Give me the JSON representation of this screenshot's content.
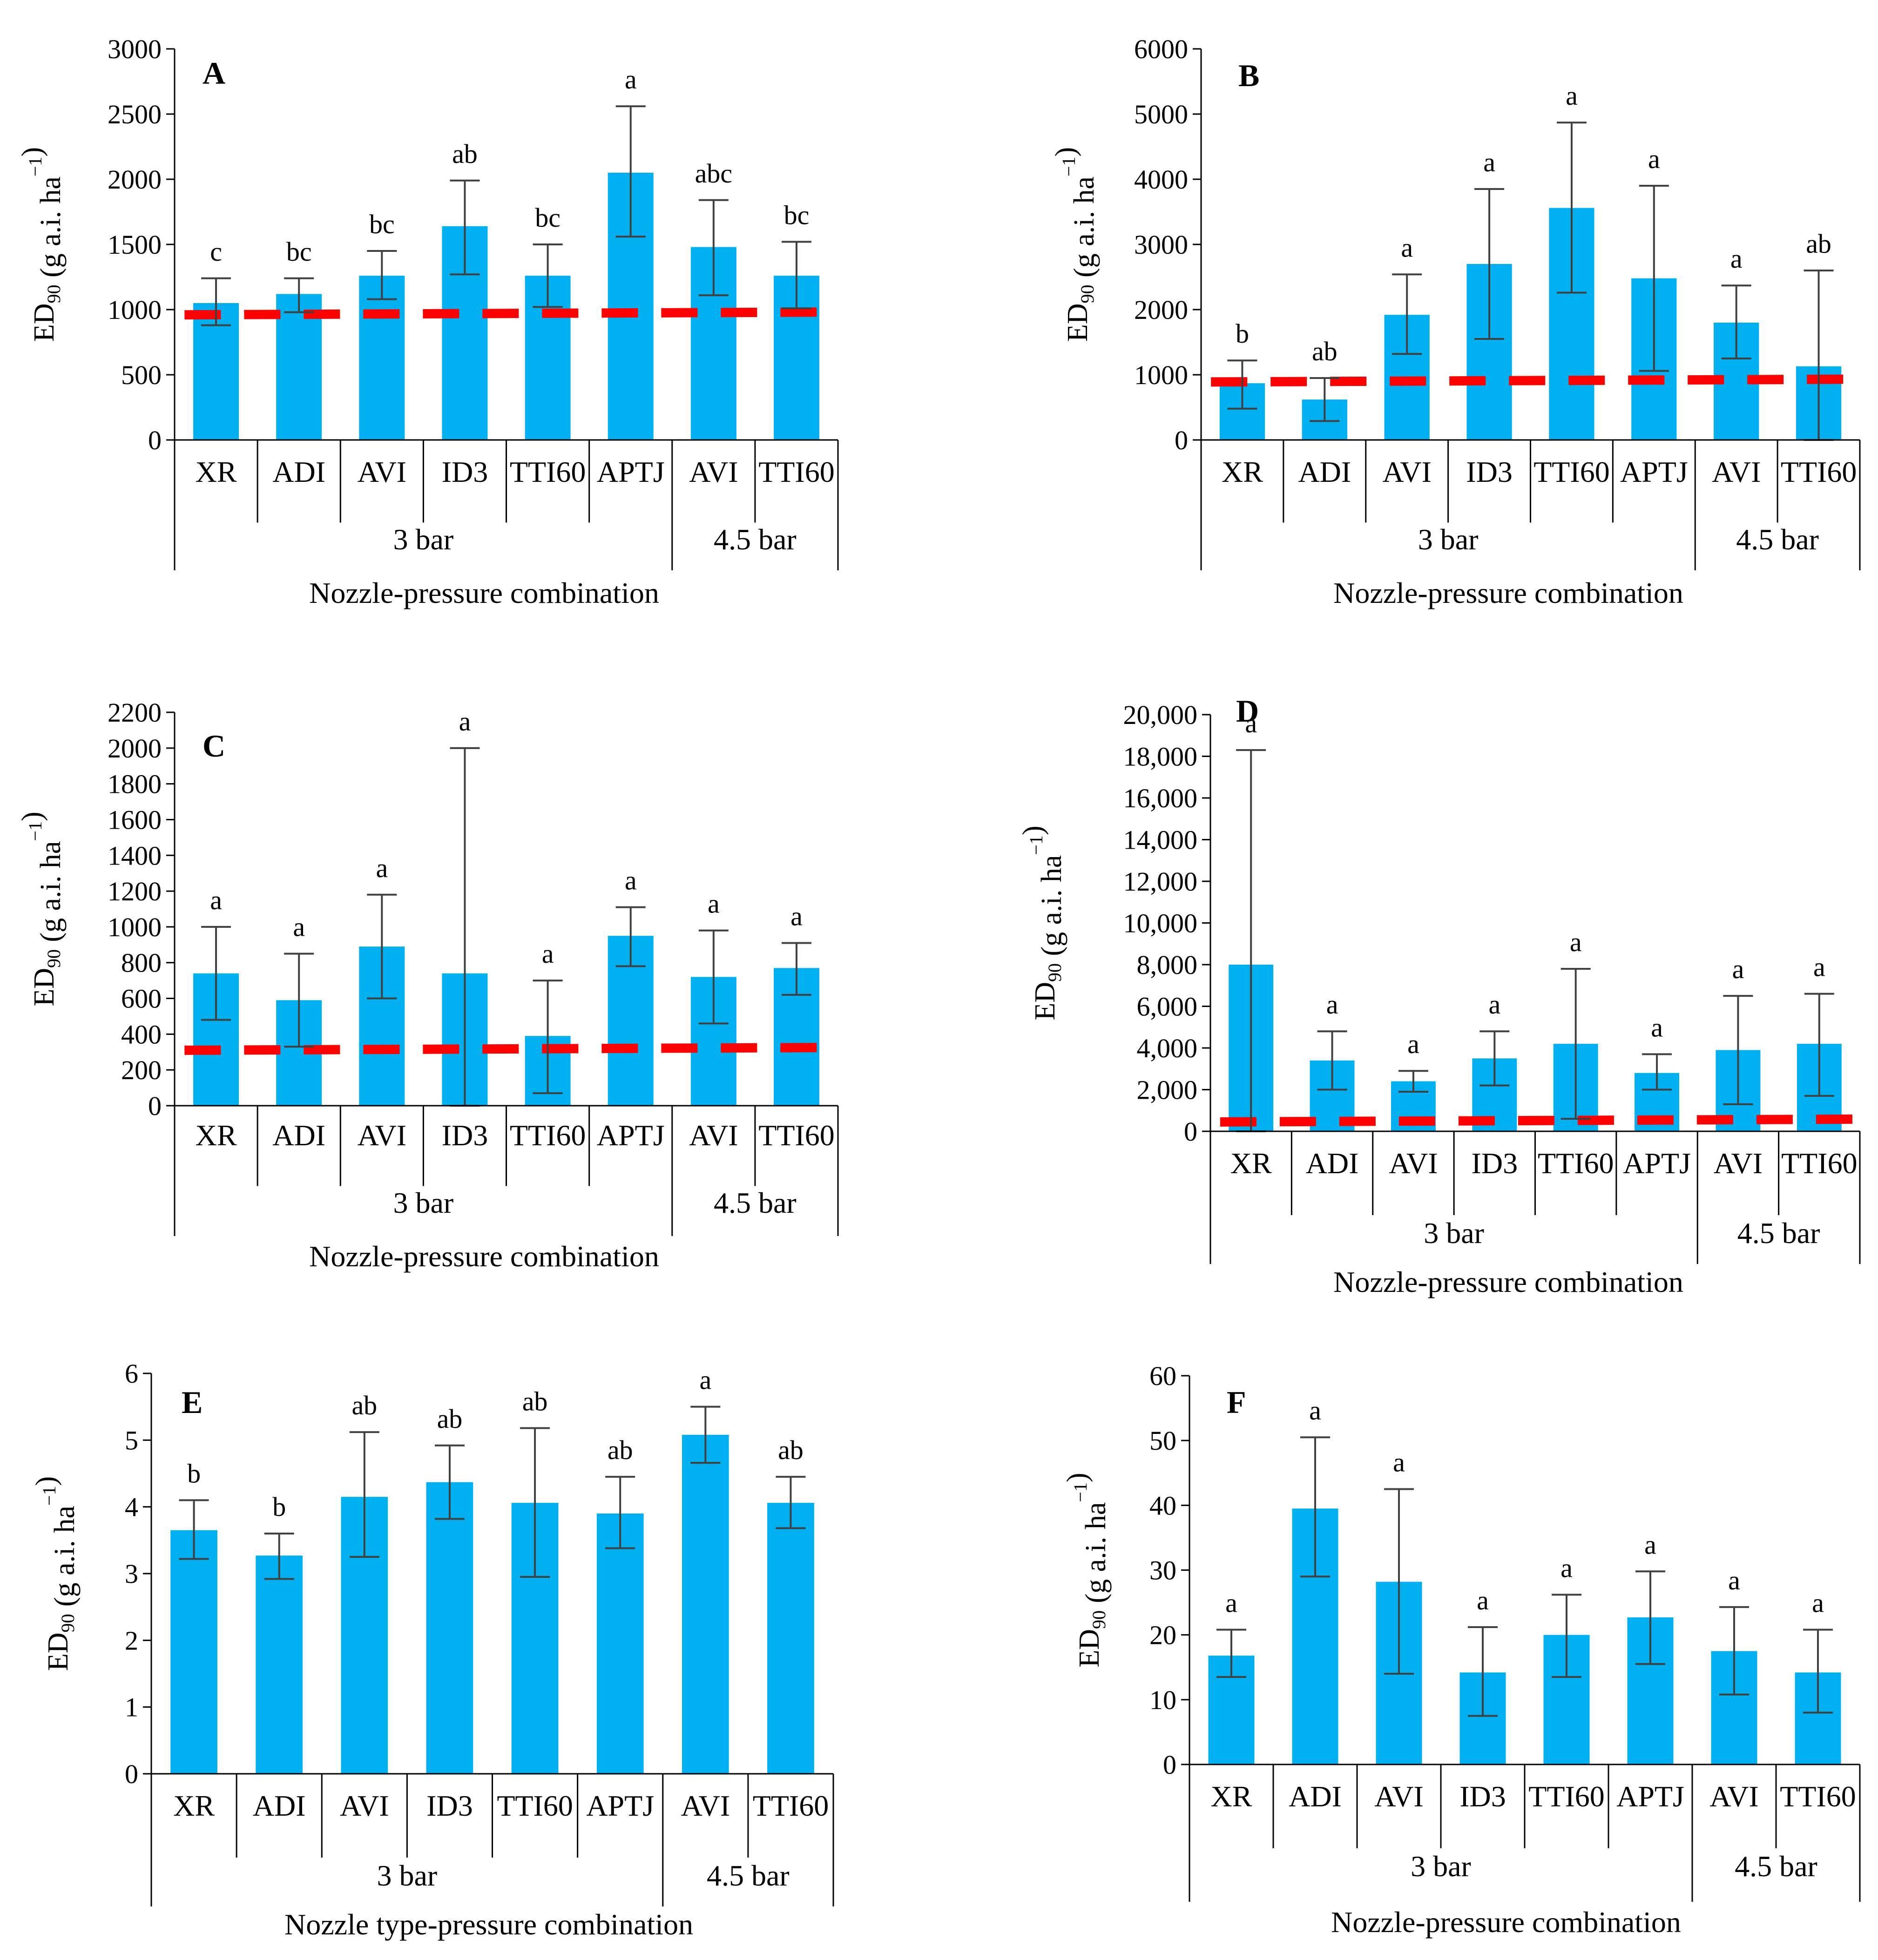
{
  "chart_data": [
    {
      "panel": "A",
      "type": "bar",
      "ylabel_main": "ED",
      "ylabel_sub": "90",
      "ylabel_rest": " (g a.i. ha",
      "ylabel_sup": "−1",
      "ylabel_close": ")",
      "xlabel": "Nozzle-pressure combination",
      "ylim": [
        0,
        3000
      ],
      "yticks": [
        "0",
        "500",
        "1000",
        "1500",
        "2000",
        "2500",
        "3000"
      ],
      "categories": [
        "XR",
        "ADI",
        "AVI",
        "ID3",
        "TTI60",
        "APTJ",
        "AVI",
        "TTI60"
      ],
      "groups": [
        {
          "label": "3 bar",
          "span": 6
        },
        {
          "label": "4.5 bar",
          "span": 2
        }
      ],
      "values": [
        1050,
        1120,
        1260,
        1640,
        1260,
        2050,
        1480,
        1260
      ],
      "err_low": [
        880,
        980,
        1080,
        1270,
        1020,
        1560,
        1110,
        1010
      ],
      "err_high": [
        1240,
        1240,
        1450,
        1990,
        1500,
        2560,
        1840,
        1520
      ],
      "letters": [
        "c",
        "bc",
        "bc",
        "ab",
        "bc",
        "a",
        "abc",
        "bc"
      ],
      "reference_line": 960,
      "colors": {
        "bar": "#00b0f0",
        "reference": "#ff0000",
        "error": "#404040"
      }
    },
    {
      "panel": "B",
      "type": "bar",
      "ylabel_main": "ED",
      "ylabel_sub": "90",
      "ylabel_rest": " (g a.i. ha",
      "ylabel_sup": "−1",
      "ylabel_close": ")",
      "xlabel": "Nozzle-pressure combination",
      "ylim": [
        0,
        6000
      ],
      "yticks": [
        "0",
        "1000",
        "2000",
        "3000",
        "4000",
        "5000",
        "6000"
      ],
      "categories": [
        "XR",
        "ADI",
        "AVI",
        "ID3",
        "TTI60",
        "APTJ",
        "AVI",
        "TTI60"
      ],
      "groups": [
        {
          "label": "3 bar",
          "span": 6
        },
        {
          "label": "4.5 bar",
          "span": 2
        }
      ],
      "values": [
        870,
        620,
        1920,
        2700,
        3560,
        2480,
        1800,
        1130
      ],
      "err_low": [
        480,
        290,
        1320,
        1550,
        2260,
        1060,
        1250,
        0
      ],
      "err_high": [
        1220,
        950,
        2540,
        3850,
        4870,
        3900,
        2370,
        2600
      ],
      "letters": [
        "b",
        "ab",
        "a",
        "a",
        "a",
        "a",
        "a",
        "ab"
      ],
      "reference_line": 890,
      "colors": {
        "bar": "#00b0f0",
        "reference": "#ff0000",
        "error": "#404040"
      }
    },
    {
      "panel": "C",
      "type": "bar",
      "ylabel_main": "ED",
      "ylabel_sub": "90",
      "ylabel_rest": " (g a.i. ha",
      "ylabel_sup": "−1",
      "ylabel_close": ")",
      "xlabel": "Nozzle-pressure combination",
      "ylim": [
        0,
        2200
      ],
      "yticks": [
        "0",
        "200",
        "400",
        "600",
        "800",
        "1000",
        "1200",
        "1400",
        "1600",
        "1800",
        "2000",
        "2200"
      ],
      "categories": [
        "XR",
        "ADI",
        "AVI",
        "ID3",
        "TTI60",
        "APTJ",
        "AVI",
        "TTI60"
      ],
      "groups": [
        {
          "label": "3 bar",
          "span": 6
        },
        {
          "label": "4.5 bar",
          "span": 2
        }
      ],
      "values": [
        740,
        590,
        890,
        740,
        390,
        950,
        720,
        770
      ],
      "err_low": [
        480,
        330,
        600,
        0,
        70,
        780,
        460,
        620
      ],
      "err_high": [
        1000,
        850,
        1180,
        2000,
        700,
        1110,
        980,
        910
      ],
      "letters": [
        "a",
        "a",
        "a",
        "a",
        "a",
        "a",
        "a",
        "a"
      ],
      "reference_line": 310,
      "colors": {
        "bar": "#00b0f0",
        "reference": "#ff0000",
        "error": "#404040"
      }
    },
    {
      "panel": "D",
      "type": "bar",
      "ylabel_main": "ED",
      "ylabel_sub": "90",
      "ylabel_rest": " (g a.i. ha",
      "ylabel_sup": "−1",
      "ylabel_close": ")",
      "xlabel": "Nozzle-pressure combination",
      "ylim": [
        0,
        20000
      ],
      "yticks": [
        "0",
        "2,000",
        "4,000",
        "6,000",
        "8,000",
        "10,000",
        "12,000",
        "14,000",
        "16,000",
        "18,000",
        "20,000"
      ],
      "categories": [
        "XR",
        "ADI",
        "AVI",
        "ID3",
        "TTI60",
        "APTJ",
        "AVI",
        "TTI60"
      ],
      "groups": [
        {
          "label": "3 bar",
          "span": 6
        },
        {
          "label": "4.5 bar",
          "span": 2
        }
      ],
      "values": [
        8000,
        3400,
        2400,
        3500,
        4200,
        2800,
        3900,
        4200
      ],
      "err_low": [
        0,
        2000,
        1900,
        2200,
        600,
        2000,
        1300,
        1700
      ],
      "err_high": [
        18300,
        4800,
        2900,
        4800,
        7800,
        3700,
        6500,
        6600
      ],
      "letters": [
        "a",
        "a",
        "a",
        "a",
        "a",
        "a",
        "a",
        "a"
      ],
      "reference_line": 450,
      "colors": {
        "bar": "#00b0f0",
        "reference": "#ff0000",
        "error": "#404040"
      }
    },
    {
      "panel": "E",
      "type": "bar",
      "ylabel_main": "ED",
      "ylabel_sub": "90",
      "ylabel_rest": " (g a.i. ha",
      "ylabel_sup": "−1",
      "ylabel_close": ")",
      "xlabel": "Nozzle type-pressure combination",
      "ylim": [
        0,
        6
      ],
      "yticks": [
        "0",
        "1",
        "2",
        "3",
        "4",
        "5",
        "6"
      ],
      "categories": [
        "XR",
        "ADI",
        "AVI",
        "ID3",
        "TTI60",
        "APTJ",
        "AVI",
        "TTI60"
      ],
      "groups": [
        {
          "label": "3 bar",
          "span": 6
        },
        {
          "label": "4.5 bar",
          "span": 2
        }
      ],
      "values": [
        3.65,
        3.27,
        4.15,
        4.37,
        4.06,
        3.9,
        5.08,
        4.06
      ],
      "err_low": [
        3.22,
        2.92,
        3.25,
        3.82,
        2.95,
        3.38,
        4.66,
        3.68
      ],
      "err_high": [
        4.1,
        3.6,
        5.12,
        4.92,
        5.18,
        4.45,
        5.5,
        4.45
      ],
      "letters": [
        "b",
        "b",
        "ab",
        "ab",
        "ab",
        "ab",
        "a",
        "ab"
      ],
      "reference_line": null,
      "colors": {
        "bar": "#00b0f0",
        "reference": "#ff0000",
        "error": "#404040"
      }
    },
    {
      "panel": "F",
      "type": "bar",
      "ylabel_main": "ED",
      "ylabel_sub": "90",
      "ylabel_rest": " (g a.i. ha",
      "ylabel_sup": "−1",
      "ylabel_close": ")",
      "xlabel": "Nozzle-pressure combination",
      "ylim": [
        0,
        60
      ],
      "yticks": [
        "0",
        "10",
        "20",
        "30",
        "40",
        "50",
        "60"
      ],
      "categories": [
        "XR",
        "ADI",
        "AVI",
        "ID3",
        "TTI60",
        "APTJ",
        "AVI",
        "TTI60"
      ],
      "groups": [
        {
          "label": "3 bar",
          "span": 6
        },
        {
          "label": "4.5 bar",
          "span": 2
        }
      ],
      "values": [
        16.8,
        39.5,
        28.2,
        14.2,
        20,
        22.7,
        17.5,
        14.2
      ],
      "err_low": [
        13.5,
        29,
        14,
        7.5,
        13.5,
        15.5,
        10.8,
        8
      ],
      "err_high": [
        20.8,
        50.5,
        42.5,
        21.2,
        26.2,
        29.8,
        24.3,
        20.8
      ],
      "letters": [
        "a",
        "a",
        "a",
        "a",
        "a",
        "a",
        "a",
        "a"
      ],
      "reference_line": null,
      "colors": {
        "bar": "#00b0f0",
        "reference": "#ff0000",
        "error": "#404040"
      }
    }
  ]
}
